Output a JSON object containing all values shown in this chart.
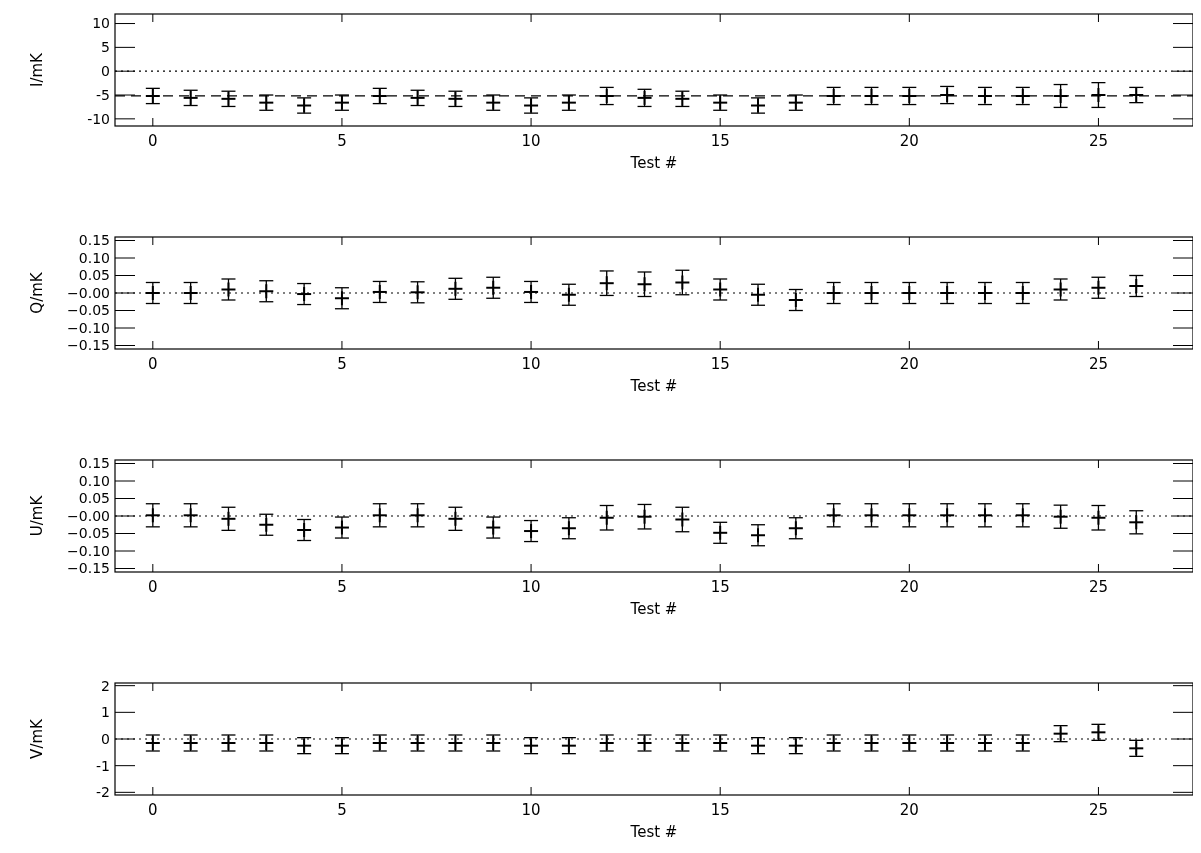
{
  "chart_data": [
    {
      "type": "scatter",
      "xlabel": "Test #",
      "ylabel": "I/mK",
      "marker": "cross",
      "grid": false,
      "xlim": [
        -1,
        27.5
      ],
      "xticks": [
        0,
        5,
        10,
        15,
        20,
        25
      ],
      "ylim": [
        -11.5,
        12
      ],
      "yticks": [
        -10,
        -5,
        0,
        5,
        10
      ],
      "x": [
        0,
        1,
        2,
        3,
        4,
        5,
        6,
        7,
        8,
        9,
        10,
        11,
        12,
        13,
        14,
        15,
        16,
        17,
        18,
        19,
        20,
        21,
        22,
        23,
        24,
        25,
        26
      ],
      "series": [
        {
          "color": "#000000",
          "values": [
            -5.2,
            -5.6,
            -5.8,
            -6.6,
            -7.2,
            -6.6,
            -5.2,
            -5.6,
            -5.8,
            -6.6,
            -7.2,
            -6.6,
            -5.2,
            -5.6,
            -5.8,
            -6.6,
            -7.2,
            -6.6,
            -5.2,
            -5.2,
            -5.2,
            -5.0,
            -5.2,
            -5.2,
            -5.2,
            -5.0,
            -5.0
          ],
          "errors": [
            1.6,
            1.6,
            1.6,
            1.6,
            1.6,
            1.6,
            1.6,
            1.6,
            1.6,
            1.6,
            1.6,
            1.6,
            1.8,
            1.8,
            1.6,
            1.6,
            1.6,
            1.6,
            1.8,
            1.8,
            1.8,
            1.8,
            1.8,
            1.8,
            2.4,
            2.6,
            1.6
          ]
        }
      ],
      "ref_lines": [
        {
          "axis": "y",
          "value": 0,
          "line_style": "dotted",
          "color": "#000000"
        },
        {
          "axis": "y",
          "value": -5.2,
          "line_style": "dashed",
          "color": "#000000"
        }
      ]
    },
    {
      "type": "scatter",
      "xlabel": "Test #",
      "ylabel": "Q/mK",
      "marker": "cross",
      "grid": false,
      "xlim": [
        -1,
        27.5
      ],
      "xticks": [
        0,
        5,
        10,
        15,
        20,
        25
      ],
      "ylim": [
        -0.16,
        0.16
      ],
      "yticks": [
        {
          "value": -0.15,
          "label": "−0.15"
        },
        {
          "value": -0.1,
          "label": "−0.10"
        },
        {
          "value": -0.05,
          "label": "−0.05"
        },
        {
          "value": 0,
          "label": "−0.00"
        },
        {
          "value": 0.05,
          "label": "0.05"
        },
        {
          "value": 0.1,
          "label": "0.10"
        },
        {
          "value": 0.15,
          "label": "0.15"
        }
      ],
      "x": [
        0,
        1,
        2,
        3,
        4,
        5,
        6,
        7,
        8,
        9,
        10,
        11,
        12,
        13,
        14,
        15,
        16,
        17,
        18,
        19,
        20,
        21,
        22,
        23,
        24,
        25,
        26
      ],
      "series": [
        {
          "color": "#000000",
          "values": [
            0,
            0,
            0.01,
            0.005,
            -0.003,
            -0.015,
            0.003,
            0.002,
            0.012,
            0.015,
            0.003,
            -0.005,
            0.028,
            0.025,
            0.03,
            0.01,
            -0.005,
            -0.02,
            0,
            0,
            0,
            0,
            0,
            0,
            0.01,
            0.015,
            0.02
          ],
          "errors": [
            0.03,
            0.03,
            0.03,
            0.03,
            0.03,
            0.03,
            0.03,
            0.03,
            0.03,
            0.03,
            0.03,
            0.03,
            0.035,
            0.035,
            0.035,
            0.03,
            0.03,
            0.03,
            0.03,
            0.03,
            0.03,
            0.03,
            0.03,
            0.03,
            0.03,
            0.03,
            0.03
          ]
        }
      ],
      "ref_lines": [
        {
          "axis": "y",
          "value": 0,
          "line_style": "dotted",
          "color": "#000000"
        }
      ]
    },
    {
      "type": "scatter",
      "xlabel": "Test #",
      "ylabel": "U/mK",
      "marker": "cross",
      "grid": false,
      "xlim": [
        -1,
        27.5
      ],
      "xticks": [
        0,
        5,
        10,
        15,
        20,
        25
      ],
      "ylim": [
        -0.16,
        0.16
      ],
      "yticks": [
        {
          "value": -0.15,
          "label": "−0.15"
        },
        {
          "value": -0.1,
          "label": "−0.10"
        },
        {
          "value": -0.05,
          "label": "−0.05"
        },
        {
          "value": 0,
          "label": "−0.00"
        },
        {
          "value": 0.05,
          "label": "0.05"
        },
        {
          "value": 0.1,
          "label": "0.10"
        },
        {
          "value": 0.15,
          "label": "0.15"
        }
      ],
      "x": [
        0,
        1,
        2,
        3,
        4,
        5,
        6,
        7,
        8,
        9,
        10,
        11,
        12,
        13,
        14,
        15,
        16,
        17,
        18,
        19,
        20,
        21,
        22,
        23,
        24,
        25,
        26
      ],
      "series": [
        {
          "color": "#000000",
          "values": [
            0.002,
            0.002,
            -0.008,
            -0.025,
            -0.04,
            -0.033,
            0.002,
            0.002,
            -0.008,
            -0.033,
            -0.043,
            -0.035,
            -0.005,
            -0.002,
            -0.01,
            -0.048,
            -0.055,
            -0.035,
            0.002,
            0.002,
            0.002,
            0.002,
            0.002,
            0.002,
            -0.002,
            -0.005,
            -0.018
          ],
          "errors": [
            0.033,
            0.033,
            0.033,
            0.03,
            0.03,
            0.03,
            0.033,
            0.033,
            0.033,
            0.03,
            0.03,
            0.03,
            0.035,
            0.035,
            0.035,
            0.03,
            0.03,
            0.03,
            0.033,
            0.033,
            0.033,
            0.033,
            0.033,
            0.033,
            0.033,
            0.035,
            0.033
          ]
        }
      ],
      "ref_lines": [
        {
          "axis": "y",
          "value": 0,
          "line_style": "dotted",
          "color": "#000000"
        }
      ]
    },
    {
      "type": "scatter",
      "xlabel": "Test #",
      "ylabel": "V/mK",
      "marker": "cross",
      "grid": false,
      "xlim": [
        -1,
        27.5
      ],
      "xticks": [
        0,
        5,
        10,
        15,
        20,
        25
      ],
      "ylim": [
        -2.1,
        2.1
      ],
      "yticks": [
        -2,
        -1,
        0,
        1,
        2
      ],
      "x": [
        0,
        1,
        2,
        3,
        4,
        5,
        6,
        7,
        8,
        9,
        10,
        11,
        12,
        13,
        14,
        15,
        16,
        17,
        18,
        19,
        20,
        21,
        22,
        23,
        24,
        25,
        26
      ],
      "series": [
        {
          "color": "#000000",
          "values": [
            -0.15,
            -0.15,
            -0.15,
            -0.15,
            -0.25,
            -0.25,
            -0.15,
            -0.15,
            -0.15,
            -0.15,
            -0.25,
            -0.25,
            -0.15,
            -0.15,
            -0.15,
            -0.15,
            -0.25,
            -0.25,
            -0.15,
            -0.15,
            -0.15,
            -0.15,
            -0.15,
            -0.15,
            0.2,
            0.25,
            -0.35
          ],
          "errors": [
            0.3,
            0.3,
            0.3,
            0.3,
            0.3,
            0.3,
            0.3,
            0.3,
            0.3,
            0.3,
            0.3,
            0.3,
            0.3,
            0.3,
            0.3,
            0.3,
            0.3,
            0.3,
            0.3,
            0.3,
            0.3,
            0.3,
            0.3,
            0.3,
            0.3,
            0.3,
            0.3
          ]
        }
      ],
      "ref_lines": [
        {
          "axis": "y",
          "value": 0,
          "line_style": "dotted",
          "color": "#000000"
        }
      ]
    }
  ]
}
